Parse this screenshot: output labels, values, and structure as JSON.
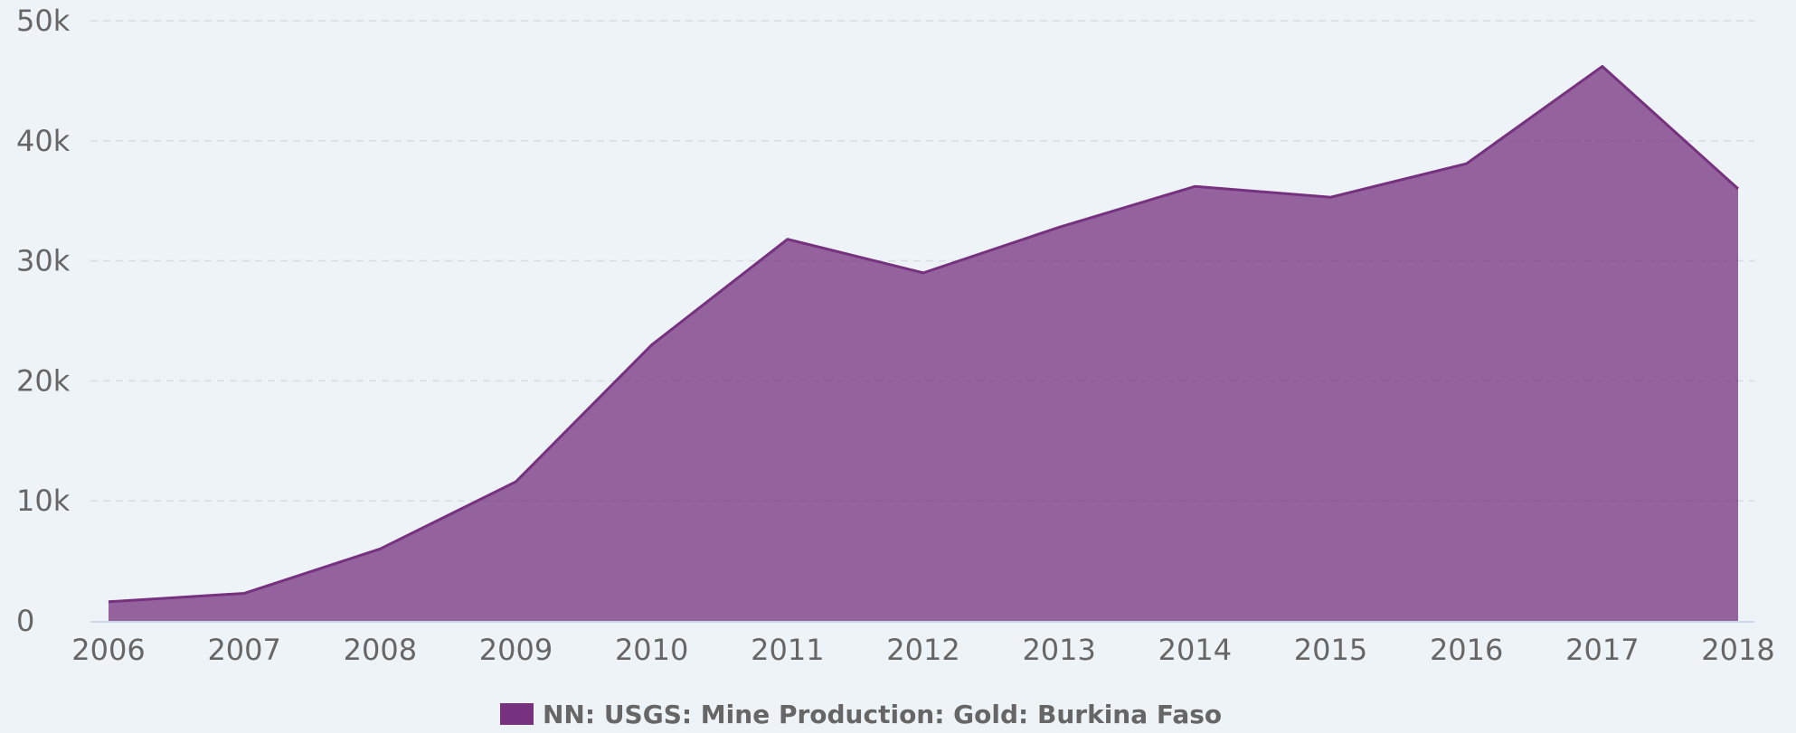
{
  "chart_data": {
    "type": "area",
    "title": "",
    "xlabel": "",
    "ylabel": "",
    "x": [
      2006,
      2007,
      2008,
      2009,
      2010,
      2011,
      2012,
      2013,
      2014,
      2015,
      2016,
      2017,
      2018
    ],
    "y_ticks": [
      0,
      10000,
      20000,
      30000,
      40000,
      50000
    ],
    "y_tick_labels": [
      "0",
      "10k",
      "20k",
      "30k",
      "40k",
      "50k"
    ],
    "ylim": [
      0,
      50000
    ],
    "grid": true,
    "legend_position": "bottom",
    "series": [
      {
        "name": "NN: USGS: Mine Production: Gold: Burkina Faso",
        "color": "#76317f",
        "values": [
          1600,
          2300,
          6000,
          11600,
          23000,
          31800,
          29000,
          32800,
          36200,
          35300,
          38100,
          46200,
          36000
        ]
      }
    ]
  }
}
